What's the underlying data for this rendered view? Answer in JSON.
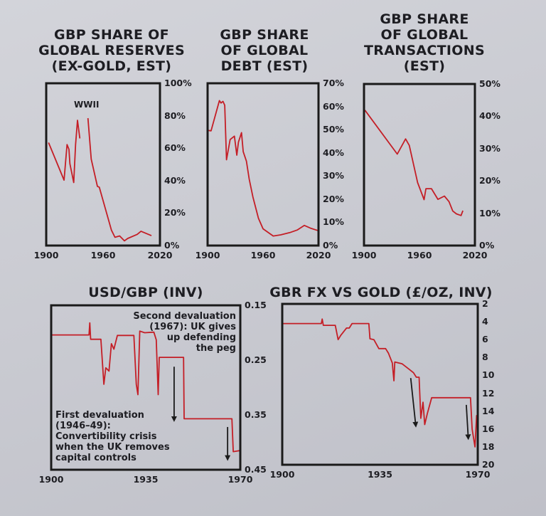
{
  "colors": {
    "line": "#c41e26",
    "frame": "#1a1a1a",
    "arrow": "#1a1a1a",
    "paper": "#cccdd3"
  },
  "chart_data": [
    {
      "type": "line",
      "title_lines": [
        "GBP SHARE OF",
        "GLOBAL RESERVES",
        "(EX-GOLD, EST)"
      ],
      "xlim": [
        1900,
        2020
      ],
      "ylim": [
        0,
        100
      ],
      "y_inverted": false,
      "x_ticks": [
        "1900",
        "1960",
        "2020"
      ],
      "x_tick_values": [
        1900,
        1960,
        2020
      ],
      "y_ticks": [
        "0%",
        "20%",
        "40%",
        "60%",
        "80%",
        "100%"
      ],
      "y_tick_values": [
        0,
        20,
        40,
        60,
        80,
        100
      ],
      "annotations": [
        {
          "text": "WWII"
        }
      ],
      "segments": [
        [
          [
            1902.5,
            63.4
          ],
          [
            1918.8,
            40.3
          ],
          [
            1922,
            62.2
          ],
          [
            1924,
            59.3
          ],
          [
            1925,
            50.5
          ],
          [
            1929,
            38.8
          ],
          [
            1931,
            62.2
          ],
          [
            1933,
            77.2
          ],
          [
            1935.5,
            66
          ]
        ],
        [
          [
            1944,
            78.5
          ],
          [
            1947.5,
            53.3
          ],
          [
            1954,
            36.5
          ],
          [
            1956,
            35.9
          ],
          [
            1968.8,
            9.5
          ],
          [
            1972.5,
            5.1
          ],
          [
            1977.5,
            5.9
          ],
          [
            1982.5,
            2.9
          ],
          [
            1986,
            4.4
          ],
          [
            1996,
            6.9
          ],
          [
            2000,
            8.8
          ],
          [
            2011,
            6.1
          ]
        ]
      ]
    },
    {
      "type": "line",
      "title_lines": [
        "GBP SHARE",
        "OF GLOBAL",
        "DEBT (EST)"
      ],
      "xlim": [
        1900,
        2020
      ],
      "ylim": [
        0,
        70
      ],
      "y_inverted": false,
      "x_ticks": [
        "1900",
        "1960",
        "2020"
      ],
      "x_tick_values": [
        1900,
        1960,
        2020
      ],
      "y_ticks": [
        "0%",
        "10%",
        "20%",
        "30%",
        "40%",
        "50%",
        "60%",
        "70%"
      ],
      "y_tick_values": [
        0,
        10,
        20,
        30,
        40,
        50,
        60,
        70
      ],
      "segments": [
        [
          [
            1900,
            49.7
          ],
          [
            1903.8,
            49.5
          ],
          [
            1912.8,
            62.5
          ],
          [
            1914.5,
            61.5
          ],
          [
            1916.6,
            62.2
          ],
          [
            1918.5,
            60.5
          ],
          [
            1920.5,
            37
          ],
          [
            1924.4,
            45.7
          ],
          [
            1929,
            47.2
          ],
          [
            1931.6,
            39
          ],
          [
            1933.4,
            44.6
          ],
          [
            1936.7,
            48.7
          ],
          [
            1938.5,
            40.5
          ],
          [
            1942,
            36.4
          ],
          [
            1945,
            28.7
          ],
          [
            1949,
            21
          ],
          [
            1955,
            11.8
          ],
          [
            1960,
            7.2
          ],
          [
            1971,
            4.1
          ],
          [
            1979,
            4.6
          ],
          [
            1989,
            5.6
          ],
          [
            1996.9,
            6.7
          ],
          [
            2004.6,
            8.7
          ],
          [
            2012,
            7.4
          ],
          [
            2019,
            6.5
          ]
        ]
      ]
    },
    {
      "type": "line",
      "title_lines": [
        "GBP SHARE",
        "OF GLOBAL",
        "TRANSACTIONS",
        "(EST)"
      ],
      "xlim": [
        1900,
        2020
      ],
      "ylim": [
        0,
        50
      ],
      "y_inverted": false,
      "x_ticks": [
        "1900",
        "1960",
        "2020"
      ],
      "x_tick_values": [
        1900,
        1960,
        2020
      ],
      "y_ticks": [
        "0%",
        "10%",
        "20%",
        "30%",
        "40%",
        "50%"
      ],
      "y_tick_values": [
        0,
        10,
        20,
        30,
        40,
        50
      ],
      "segments": [
        [
          [
            1901,
            41.9
          ],
          [
            1936,
            28.3
          ],
          [
            1945,
            33
          ],
          [
            1949,
            31
          ],
          [
            1958,
            19.5
          ],
          [
            1965,
            14.2
          ],
          [
            1967,
            17.6
          ],
          [
            1973,
            17.6
          ],
          [
            1980,
            14.3
          ],
          [
            1987,
            15.3
          ],
          [
            1992,
            13.6
          ],
          [
            1996,
            10.7
          ],
          [
            2000,
            9.8
          ],
          [
            2005,
            9.3
          ],
          [
            2007,
            10.8
          ]
        ]
      ]
    },
    {
      "type": "line",
      "title_lines": [
        "USD/GBP (INV)"
      ],
      "xlim": [
        1900,
        1970
      ],
      "ylim": [
        0.15,
        0.45
      ],
      "y_inverted": true,
      "x_ticks": [
        "1900",
        "1935",
        "1970"
      ],
      "x_tick_values": [
        1900,
        1935,
        1970
      ],
      "y_ticks": [
        "0.15",
        "0.25",
        "0.35",
        "0.45"
      ],
      "y_tick_values": [
        0.15,
        0.25,
        0.35,
        0.45
      ],
      "annotations": [
        {
          "lines": [
            "Second devaluation",
            "(1967): UK gives",
            "up defending",
            "the peg"
          ]
        },
        {
          "lines": [
            "First devaluation",
            "(1946–49):",
            "Convertibility crisis",
            "when the UK removes",
            "capital controls"
          ]
        }
      ],
      "arrows": [
        [
          [
            1945.5,
            0.262
          ],
          [
            1945.5,
            0.359
          ]
        ],
        [
          [
            1965.3,
            0.372
          ],
          [
            1965.3,
            0.43
          ]
        ]
      ],
      "segments": [
        [
          [
            1900,
            0.204
          ],
          [
            1914,
            0.204
          ],
          [
            1914.3,
            0.182
          ],
          [
            1914.6,
            0.212
          ],
          [
            1918.4,
            0.212
          ],
          [
            1919.5,
            0.294
          ],
          [
            1920.2,
            0.264
          ],
          [
            1921.4,
            0.27
          ],
          [
            1922.3,
            0.22
          ],
          [
            1923.2,
            0.23
          ],
          [
            1924.5,
            0.205
          ],
          [
            1930.6,
            0.205
          ],
          [
            1931.5,
            0.294
          ],
          [
            1932.1,
            0.313
          ],
          [
            1932.8,
            0.197
          ],
          [
            1934.6,
            0.2
          ],
          [
            1938,
            0.199
          ],
          [
            1938.9,
            0.213
          ],
          [
            1939.6,
            0.313
          ],
          [
            1940,
            0.245
          ],
          [
            1949,
            0.245
          ],
          [
            1949.2,
            0.357
          ],
          [
            1966.9,
            0.357
          ],
          [
            1967.4,
            0.417
          ],
          [
            1970,
            0.415
          ]
        ]
      ]
    },
    {
      "type": "line",
      "title_lines": [
        "GBR FX VS GOLD (£/OZ, INV)"
      ],
      "xlim": [
        1900,
        1970
      ],
      "ylim": [
        2,
        20
      ],
      "y_inverted": true,
      "x_ticks": [
        "1900",
        "1935",
        "1970"
      ],
      "x_tick_values": [
        1900,
        1935,
        1970
      ],
      "y_ticks": [
        "2",
        "4",
        "6",
        "8",
        "10",
        "12",
        "14",
        "16",
        "18",
        "20"
      ],
      "y_tick_values": [
        2,
        4,
        6,
        8,
        10,
        12,
        14,
        16,
        18,
        20
      ],
      "arrows": [
        [
          [
            1946,
            10.3
          ],
          [
            1947.8,
            15.6
          ]
        ],
        [
          [
            1965.9,
            13.3
          ],
          [
            1966.6,
            17.0
          ]
        ]
      ],
      "segments": [
        [
          [
            1900,
            4.2
          ],
          [
            1914,
            4.2
          ],
          [
            1914.3,
            3.7
          ],
          [
            1914.7,
            4.4
          ],
          [
            1919,
            4.4
          ],
          [
            1920,
            6.0
          ],
          [
            1921,
            5.5
          ],
          [
            1923,
            4.7
          ],
          [
            1924,
            4.7
          ],
          [
            1925,
            4.2
          ],
          [
            1931,
            4.2
          ],
          [
            1931.4,
            5.9
          ],
          [
            1932.8,
            6.0
          ],
          [
            1934.6,
            7.0
          ],
          [
            1937,
            7.0
          ],
          [
            1938,
            7.5
          ],
          [
            1939.4,
            8.6
          ],
          [
            1940,
            10.6
          ],
          [
            1940.3,
            8.5
          ],
          [
            1942.9,
            8.7
          ],
          [
            1945.8,
            9.4
          ],
          [
            1947,
            9.7
          ],
          [
            1948,
            10.2
          ],
          [
            1949,
            10.2
          ],
          [
            1949.6,
            14.8
          ],
          [
            1950.4,
            13.0
          ],
          [
            1951,
            15.5
          ],
          [
            1952,
            14.2
          ],
          [
            1953.5,
            12.5
          ],
          [
            1967.4,
            12.5
          ],
          [
            1968,
            16
          ],
          [
            1969,
            18
          ],
          [
            1969.6,
            14.5
          ],
          [
            1970,
            15
          ]
        ]
      ]
    }
  ]
}
